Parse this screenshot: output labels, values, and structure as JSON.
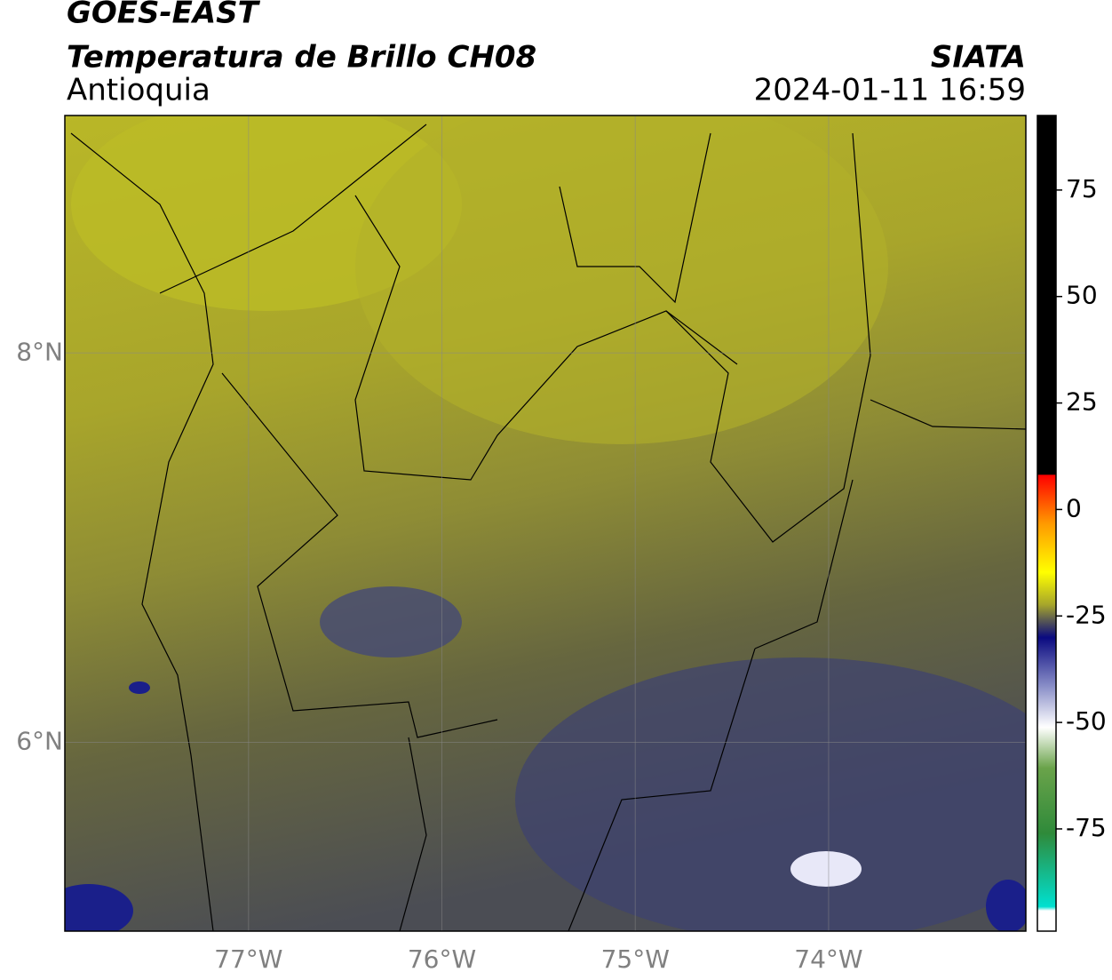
{
  "header": {
    "title": "GOES-EAST",
    "subtitle": "Temperatura de Brillo CH08",
    "region": "Antioquia",
    "source": "SIATA",
    "datetime": "2024-01-11 16:59"
  },
  "map": {
    "xlim": [
      -77.95,
      -72.98
    ],
    "ylim": [
      5.03,
      9.22
    ],
    "xticks": [
      {
        "value": -77,
        "label": "77°W"
      },
      {
        "value": -76,
        "label": "76°W"
      },
      {
        "value": -75,
        "label": "75°W"
      },
      {
        "value": -74,
        "label": "74°W"
      }
    ],
    "yticks": [
      {
        "value": 8,
        "label": "8°N"
      },
      {
        "value": 6,
        "label": "6°N"
      }
    ]
  },
  "colorbar": {
    "lim": [
      -99,
      92.5
    ],
    "ticks": [
      75,
      50,
      25,
      0,
      -25,
      -50,
      -75
    ]
  }
}
